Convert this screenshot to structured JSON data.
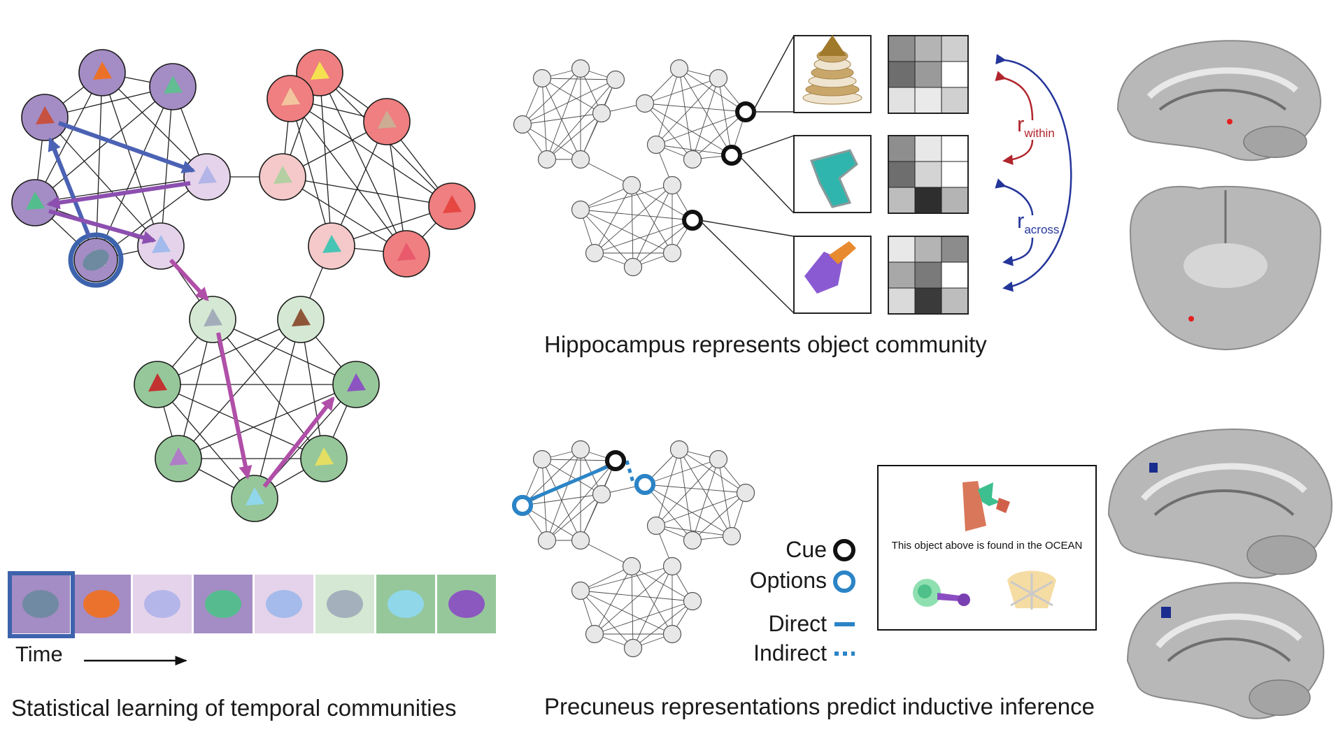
{
  "colors": {
    "purple_dark": "#a48cc4",
    "purple_light": "#e4d3ea",
    "red_dark": "#ef7f80",
    "red_light": "#f5c9c9",
    "green_dark": "#96c79a",
    "green_light": "#d5e8d3",
    "arrow_blue": "#4b62b4",
    "arrow_purple": "#8c4fb0",
    "arrow_magenta": "#b04fa8",
    "highlight_blue": "#3d63ad",
    "cue_black": "#111111",
    "option_blue": "#2b84c6",
    "within_red": "#b1252c",
    "across_blue": "#24359a",
    "node_gray": "#e8e8e8"
  },
  "panel_a": {
    "caption": "Statistical learning of temporal communities",
    "time_label": "Time"
  },
  "panel_b": {
    "caption": "Hippocampus represents object community",
    "r_within": {
      "r": "r",
      "sub": "within"
    },
    "r_across": {
      "r": "r",
      "sub": "across"
    }
  },
  "panel_c": {
    "caption": "Precuneus representations predict inductive inference",
    "legend": {
      "cue": "Cue",
      "options": "Options",
      "direct": "Direct",
      "indirect": "Indirect"
    },
    "task_prompt": "This object above is found in the OCEAN"
  },
  "rsm_grays": [
    [
      "#8e8e8e",
      "#b4b4b4",
      "#cfcfcf",
      "#6e6e6e",
      "#9a9a9a",
      "#ffffff",
      "#e2e2e2",
      "#eaeaea",
      "#d0d0d0"
    ],
    [
      "#8e8e8e",
      "#e8e8e8",
      "#ffffff",
      "#6e6e6e",
      "#d4d4d4",
      "#ffffff",
      "#bdbdbd",
      "#2e2e2e",
      "#b4b4b4"
    ],
    [
      "#e8e8e8",
      "#b4b4b4",
      "#8c8c8c",
      "#a8a8a8",
      "#7a7a7a",
      "#ffffff",
      "#dadada",
      "#3a3a3a",
      "#bdbdbd"
    ]
  ]
}
